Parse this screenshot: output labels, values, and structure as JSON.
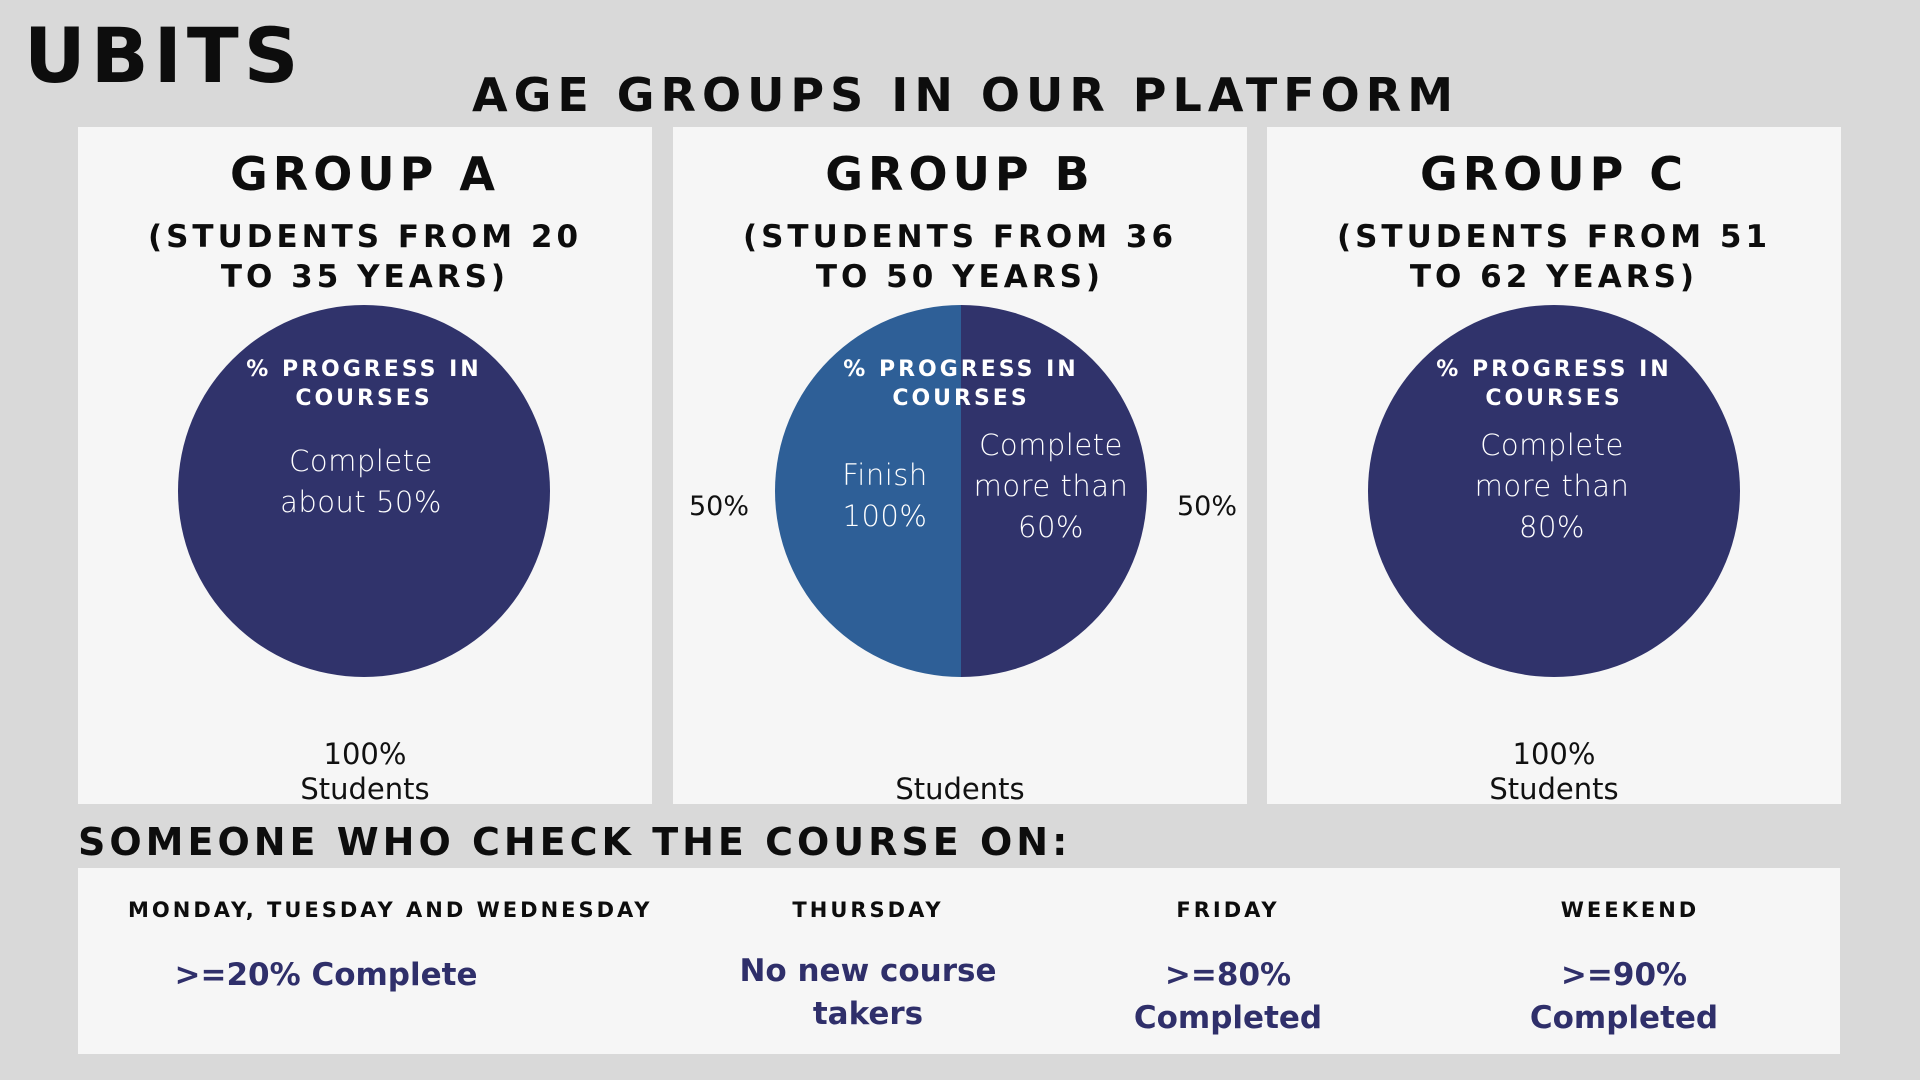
{
  "header": {
    "logo": "UBITS",
    "title": "AGE GROUPS IN OUR PLATFORM"
  },
  "colors": {
    "background": "#d9d9d9",
    "panel": "#f6f6f6",
    "navy": "#30336b",
    "blue": "#2e5f97",
    "value_text": "#2f2f6a"
  },
  "groups": [
    {
      "title": "GROUP A",
      "subtitle": "(STUDENTS FROM 20\nTO 35 YEARS)",
      "pie_title": "% PROGRESS IN\nCOURSES",
      "slice_text": "Complete\nabout 50%",
      "bottom_label": "100%\nStudents"
    },
    {
      "title": "GROUP B",
      "subtitle": "(STUDENTS FROM 36\nTO 50 YEARS)",
      "pie_title": "% PROGRESS IN\nCOURSES",
      "slice_left_text": "Finish\n100%",
      "slice_right_text": "Complete\nmore than\n60%",
      "left_pct": "50%",
      "right_pct": "50%",
      "bottom_label": "Students"
    },
    {
      "title": "GROUP C",
      "subtitle": "(STUDENTS FROM 51\nTO 62 YEARS)",
      "pie_title": "% PROGRESS IN\nCOURSES",
      "slice_text": "Complete\nmore than\n80%",
      "bottom_label": "100%\nStudents"
    }
  ],
  "chart_data": [
    {
      "type": "pie",
      "title": "% PROGRESS IN COURSES",
      "slices": [
        {
          "label": "Complete about 50%",
          "value": 100,
          "color": "#30336b"
        }
      ]
    },
    {
      "type": "pie",
      "title": "% PROGRESS IN COURSES",
      "slices": [
        {
          "label": "Finish 100%",
          "value": 50,
          "color": "#2e5f97"
        },
        {
          "label": "Complete more than 60%",
          "value": 50,
          "color": "#30336b"
        }
      ]
    },
    {
      "type": "pie",
      "title": "% PROGRESS IN COURSES",
      "slices": [
        {
          "label": "Complete more than 80%",
          "value": 100,
          "color": "#30336b"
        }
      ]
    }
  ],
  "schedule": {
    "title": "SOMEONE WHO CHECK THE COURSE ON:",
    "days": [
      {
        "name": "MONDAY, TUESDAY AND WEDNESDAY",
        "value": ">=20% Complete"
      },
      {
        "name": "THURSDAY",
        "value": "No new course\ntakers"
      },
      {
        "name": "FRIDAY",
        "value": ">=80% Completed"
      },
      {
        "name": "WEEKEND",
        "value": ">=90% Completed"
      }
    ]
  }
}
